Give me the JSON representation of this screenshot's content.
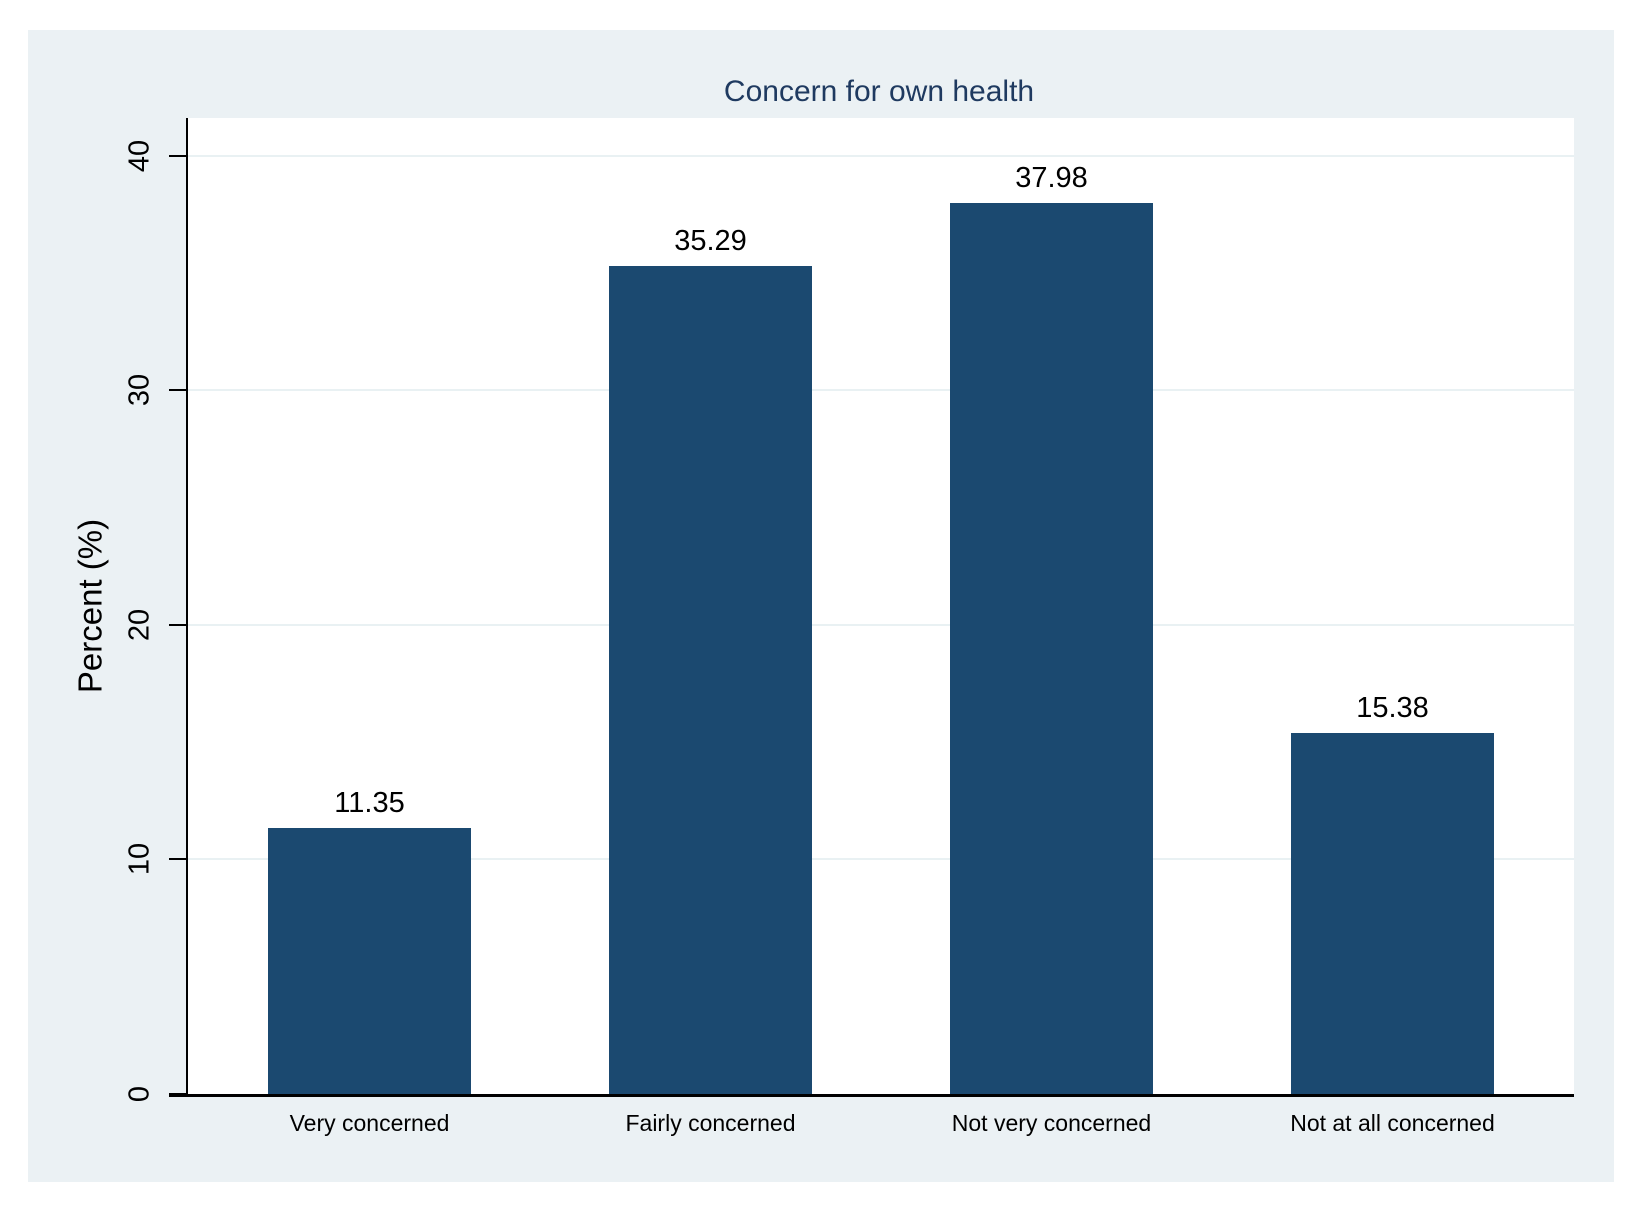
{
  "chart_data": {
    "type": "bar",
    "title": "Concern for own health",
    "xlabel": "",
    "ylabel": "Percent (%)",
    "categories": [
      "Very concerned",
      "Fairly concerned",
      "Not very concerned",
      "Not at all concerned"
    ],
    "values": [
      11.35,
      35.29,
      37.98,
      15.38
    ],
    "value_labels": [
      "11.35",
      "35.29",
      "37.98",
      "15.38"
    ],
    "yticks": [
      0,
      10,
      20,
      30,
      40
    ],
    "ytick_labels": [
      "0",
      "10",
      "20",
      "30",
      "40"
    ],
    "ylim": [
      0,
      41.6
    ],
    "grid": "horizontal",
    "legend": "none",
    "colors": {
      "bar_fill": "#1b4970",
      "canvas_bg": "#ebf1f4",
      "plot_bg": "#ffffff",
      "gridline": "#e9f1f3",
      "title_text": "#1f3a60",
      "axis_line": "#000000",
      "label_text": "#000000"
    }
  }
}
